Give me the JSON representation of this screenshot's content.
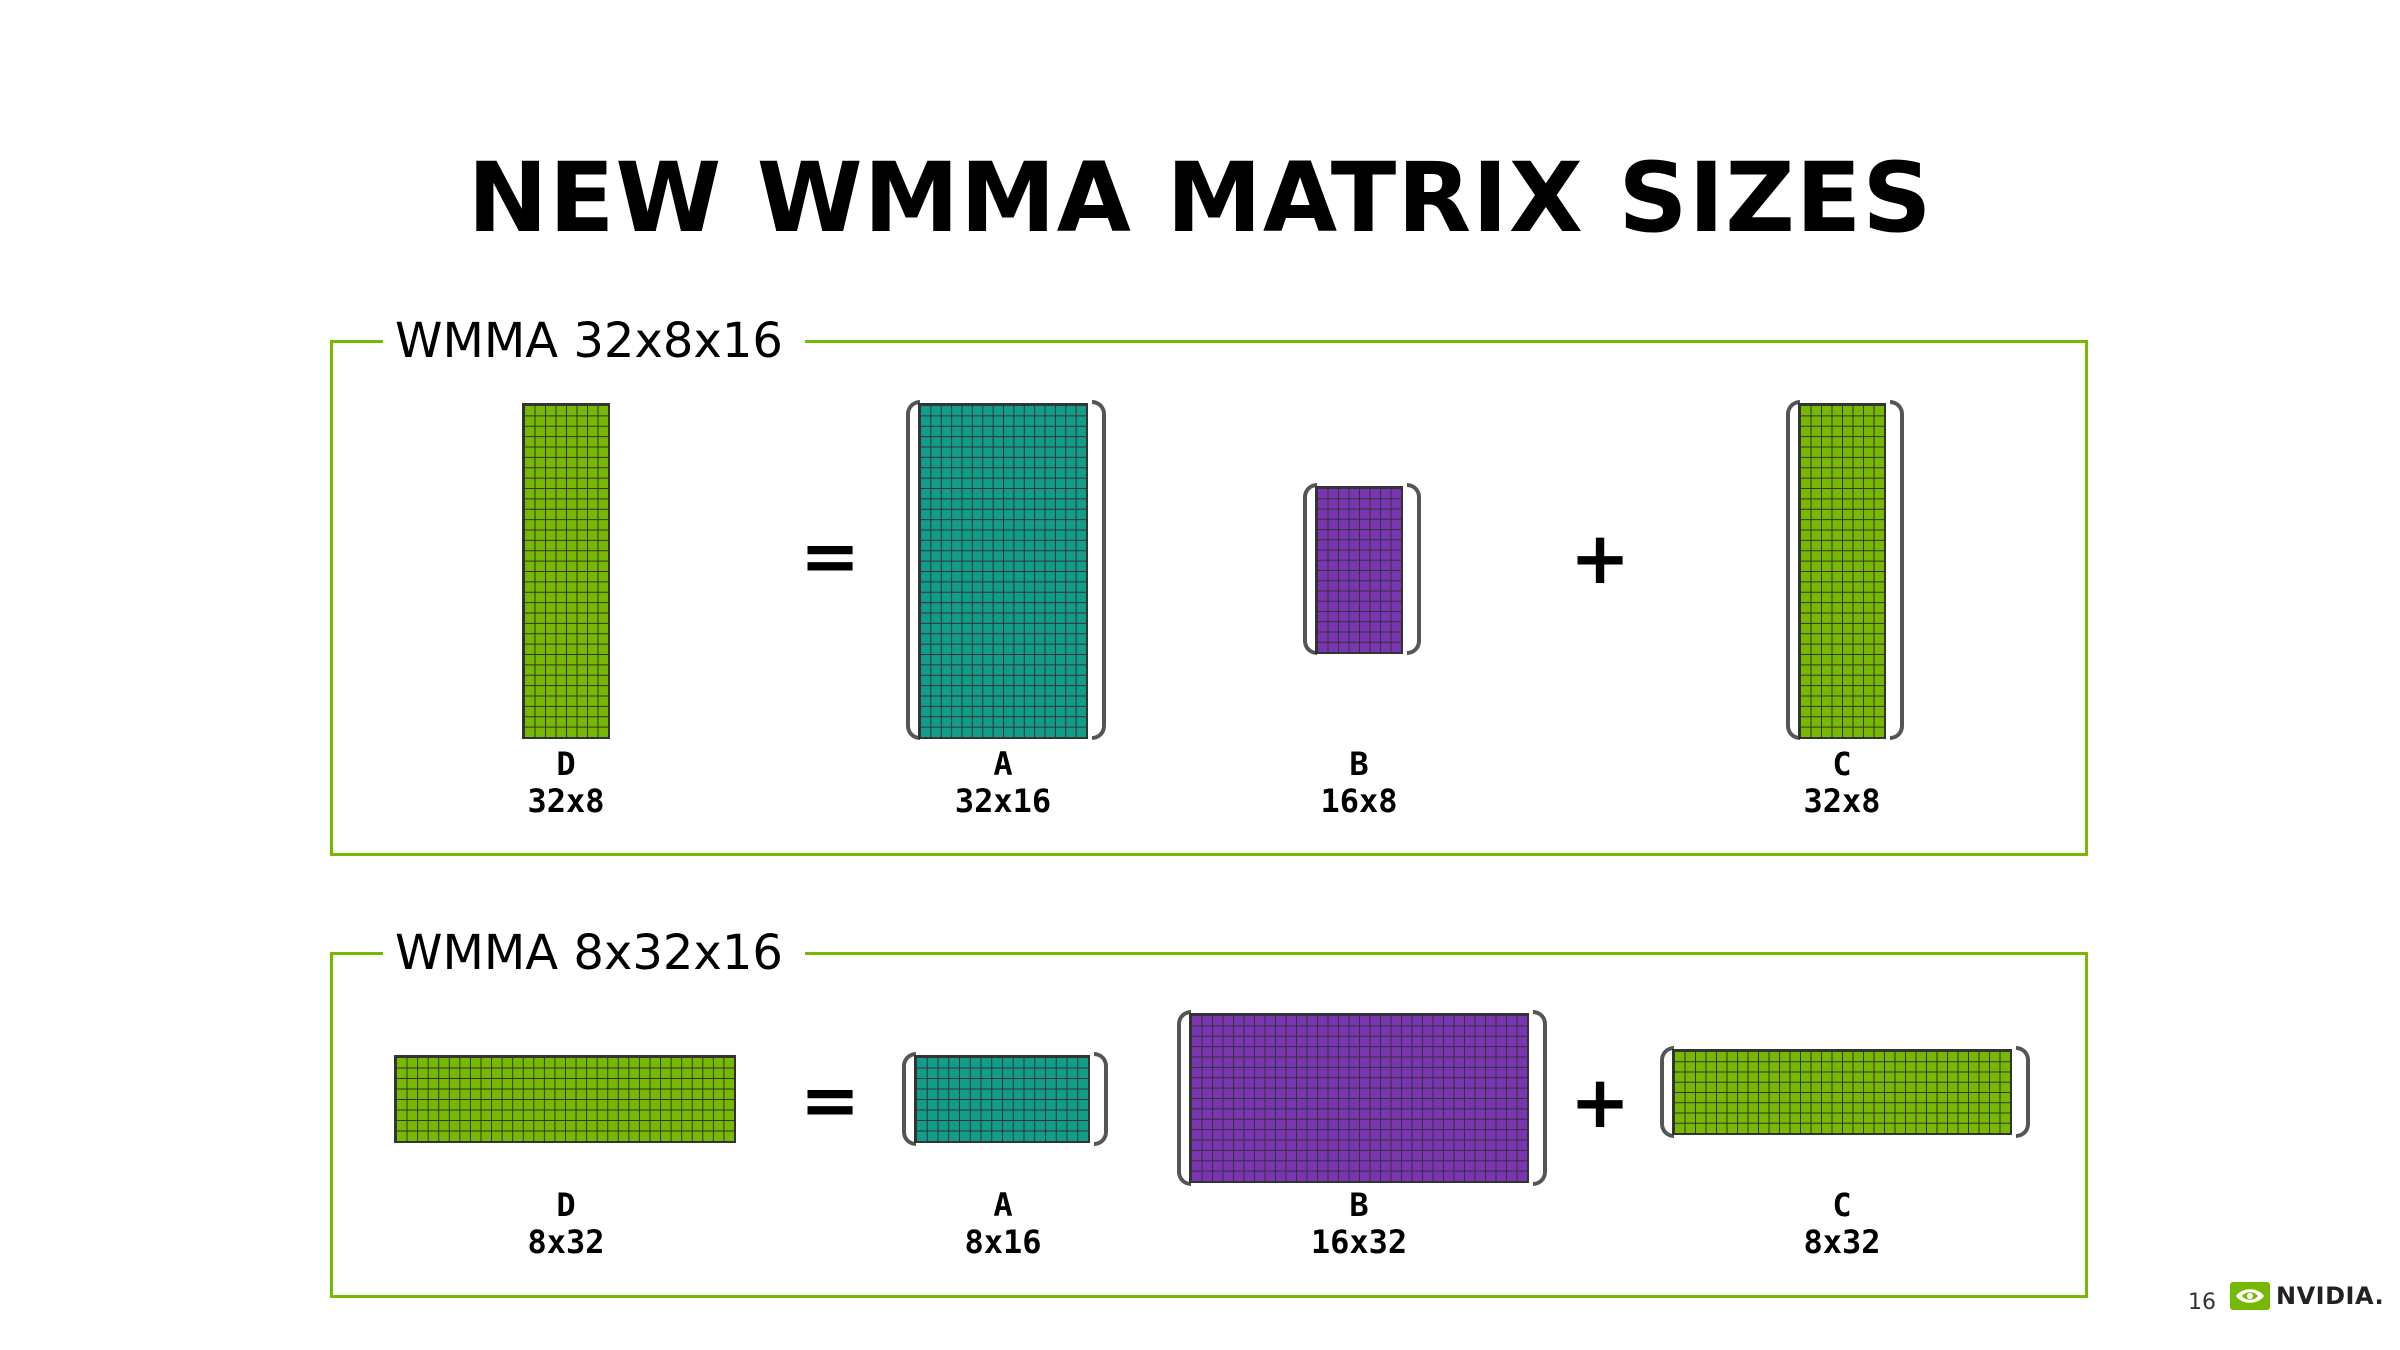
{
  "slide": {
    "title": "NEW WMMA MATRIX SIZES",
    "page_number": "16",
    "logo_text": "NVIDIA."
  },
  "colors": {
    "green": "#76b900",
    "teal": "#129d8b",
    "purple": "#7a35b2",
    "grid": "#333333"
  },
  "panels": [
    {
      "label": "WMMA 32x8x16",
      "operators": {
        "equals": "=",
        "plus": "+"
      },
      "matrices": [
        {
          "name": "D",
          "dims": "32x8",
          "rows": 32,
          "cols": 8,
          "color": "green",
          "bracketed": false
        },
        {
          "name": "A",
          "dims": "32x16",
          "rows": 32,
          "cols": 16,
          "color": "teal",
          "bracketed": true
        },
        {
          "name": "B",
          "dims": "16x8",
          "rows": 16,
          "cols": 8,
          "color": "purple",
          "bracketed": true
        },
        {
          "name": "C",
          "dims": "32x8",
          "rows": 32,
          "cols": 8,
          "color": "green",
          "bracketed": true
        }
      ]
    },
    {
      "label": "WMMA 8x32x16",
      "operators": {
        "equals": "=",
        "plus": "+"
      },
      "matrices": [
        {
          "name": "D",
          "dims": "8x32",
          "rows": 8,
          "cols": 32,
          "color": "green",
          "bracketed": false
        },
        {
          "name": "A",
          "dims": "8x16",
          "rows": 8,
          "cols": 16,
          "color": "teal",
          "bracketed": true
        },
        {
          "name": "B",
          "dims": "16x32",
          "rows": 16,
          "cols": 32,
          "color": "purple",
          "bracketed": true
        },
        {
          "name": "C",
          "dims": "8x32",
          "rows": 8,
          "cols": 32,
          "color": "green",
          "bracketed": true
        }
      ]
    }
  ]
}
